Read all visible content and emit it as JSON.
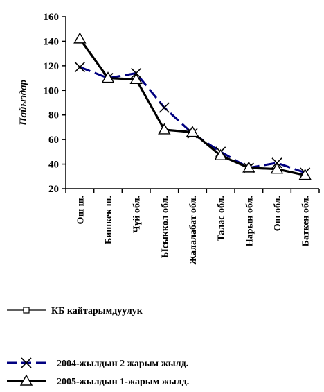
{
  "chart_data": {
    "type": "line",
    "ylabel": "Пайыздар",
    "ylim": [
      20,
      160
    ],
    "yticks": [
      20,
      40,
      60,
      80,
      100,
      120,
      140,
      160
    ],
    "categories": [
      "Ош ш.",
      "Бишкек ш.",
      "Чүй обл.",
      "Ысыккол обл.",
      "Жалалабат обл.",
      "Талас обл.",
      "Нарын обл.",
      "Ош обл.",
      "Баткен обл."
    ],
    "series": [
      {
        "name": "2004-жылдын 2 жарым жылд.",
        "color": "#000080",
        "marker": "x",
        "style": "dashed",
        "values": [
          119,
          110,
          114,
          86,
          65,
          50,
          37,
          41,
          33
        ]
      },
      {
        "name": "2005-жылдын 1-жарым жылд.",
        "color": "#000000",
        "marker": "triangle",
        "style": "solid",
        "values": [
          142,
          110,
          109,
          68,
          66,
          47,
          37,
          36,
          31
        ]
      }
    ],
    "legend": {
      "position": "bottom-left",
      "entries": [
        {
          "label": "КБ кайтарымдуулук",
          "marker": "square",
          "style": "solid"
        },
        {
          "label": "2004-жылдын 2 жарым жылд.",
          "marker": "x",
          "style": "dashed"
        },
        {
          "label": "2005-жылдын 1-жарым жылд.",
          "marker": "triangle",
          "style": "solid"
        }
      ]
    },
    "grid": false
  }
}
